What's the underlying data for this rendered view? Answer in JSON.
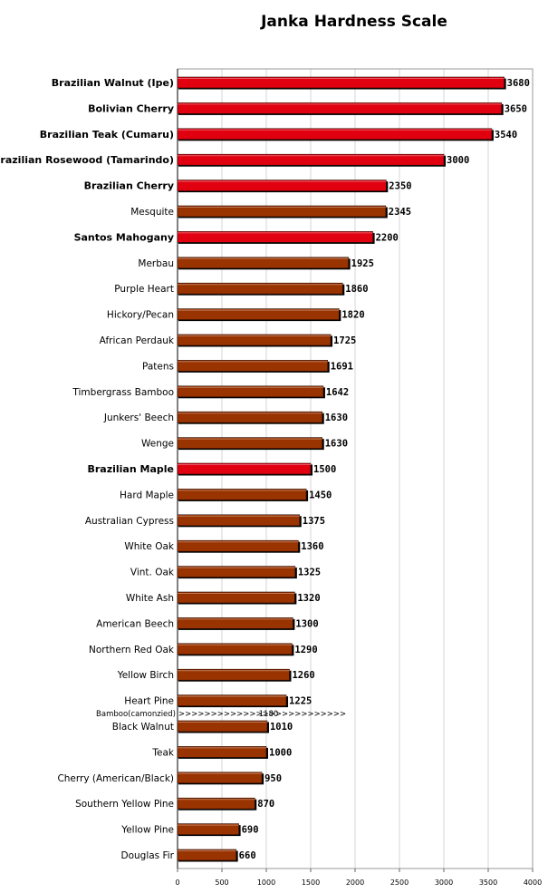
{
  "chart_data": {
    "type": "bar",
    "orientation": "horizontal",
    "title": "Janka Hardness Scale",
    "xlabel": "",
    "ylabel": "",
    "xlim": [
      0,
      4000
    ],
    "x_ticks": [
      "0",
      "500",
      "1000",
      "1500",
      "2000",
      "2500",
      "3000",
      "3500",
      "4000"
    ],
    "grid": true,
    "colors": {
      "highlight": "#e00010",
      "normal": "#993300",
      "shadow": "#000000"
    },
    "bars": [
      {
        "label": "Brazilian Walnut (Ipe)",
        "value": 3680,
        "value_label": "3680",
        "highlight": true
      },
      {
        "label": "Bolivian Cherry",
        "value": 3650,
        "value_label": "3650",
        "highlight": true
      },
      {
        "label": "Brazilian Teak (Cumaru)",
        "value": 3540,
        "value_label": "3540",
        "highlight": true
      },
      {
        "label": "Brazilian Rosewood (Tamarindo)",
        "value": 3000,
        "value_label": "3000",
        "highlight": true
      },
      {
        "label": "Brazilian Cherry",
        "value": 2350,
        "value_label": "2350",
        "highlight": true
      },
      {
        "label": "Mesquite",
        "value": 2345,
        "value_label": "2345",
        "highlight": false
      },
      {
        "label": "Santos Mahogany",
        "value": 2200,
        "value_label": "2200",
        "highlight": true
      },
      {
        "label": "Merbau",
        "value": 1925,
        "value_label": "1925",
        "highlight": false
      },
      {
        "label": "Purple Heart",
        "value": 1860,
        "value_label": "1860",
        "highlight": false
      },
      {
        "label": "Hickory/Pecan",
        "value": 1820,
        "value_label": "1820",
        "highlight": false
      },
      {
        "label": "African Perdauk",
        "value": 1725,
        "value_label": "1725",
        "highlight": false
      },
      {
        "label": "Patens",
        "value": 1691,
        "value_label": "1691",
        "highlight": false
      },
      {
        "label": "Timbergrass Bamboo",
        "value": 1642,
        "value_label": "1642",
        "highlight": false
      },
      {
        "label": "Junkers' Beech",
        "value": 1630,
        "value_label": "1630",
        "highlight": false
      },
      {
        "label": "Wenge",
        "value": 1630,
        "value_label": "1630",
        "highlight": false
      },
      {
        "label": "Brazilian Maple",
        "value": 1500,
        "value_label": "1500",
        "highlight": true
      },
      {
        "label": "Hard Maple",
        "value": 1450,
        "value_label": "1450",
        "highlight": false
      },
      {
        "label": "Australian Cypress",
        "value": 1375,
        "value_label": "1375",
        "highlight": false
      },
      {
        "label": "White Oak",
        "value": 1360,
        "value_label": "1360",
        "highlight": false
      },
      {
        "label": "Vint. Oak",
        "value": 1325,
        "value_label": "1325",
        "highlight": false
      },
      {
        "label": "White Ash",
        "value": 1320,
        "value_label": "1320",
        "highlight": false
      },
      {
        "label": "American Beech",
        "value": 1300,
        "value_label": "1300",
        "highlight": false
      },
      {
        "label": "Northern Red Oak",
        "value": 1290,
        "value_label": "1290",
        "highlight": false
      },
      {
        "label": "Yellow Birch",
        "value": 1260,
        "value_label": "1260",
        "highlight": false
      },
      {
        "label": "Heart Pine",
        "value": 1225,
        "value_label": "1225",
        "highlight": false
      },
      {
        "label": "Black Walnut",
        "value": 1010,
        "value_label": "1010",
        "highlight": false
      },
      {
        "label": "Teak",
        "value": 1000,
        "value_label": "1000",
        "highlight": false
      },
      {
        "label": "Cherry (American/Black)",
        "value": 950,
        "value_label": "950",
        "highlight": false
      },
      {
        "label": "Southern Yellow Pine",
        "value": 870,
        "value_label": "870",
        "highlight": false
      },
      {
        "label": "Yellow Pine",
        "value": 690,
        "value_label": "690",
        "highlight": false
      },
      {
        "label": "Douglas Fir",
        "value": 660,
        "value_label": "660",
        "highlight": false
      }
    ],
    "annotation": {
      "label": "Bamboo(camonzied)",
      "arrows": ">>>>>>>>>>>>>>>>>>>>>>>>>>",
      "value": 1180,
      "value_label": "1180",
      "after_bar": "Heart Pine"
    }
  }
}
